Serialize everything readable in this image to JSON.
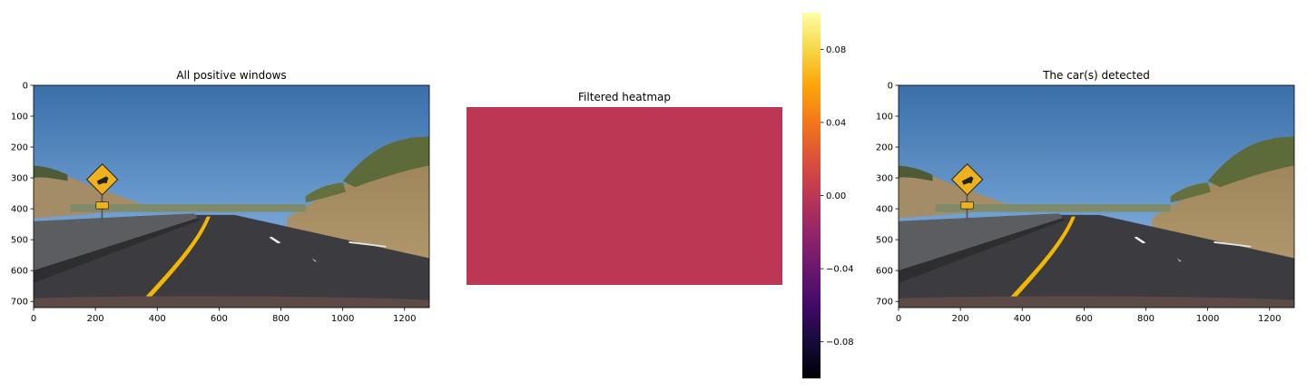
{
  "chart_data": [
    {
      "type": "image",
      "title": "All positive windows",
      "xticks": [
        0,
        200,
        400,
        600,
        800,
        1000,
        1200
      ],
      "yticks": [
        0,
        100,
        200,
        300,
        400,
        500,
        600,
        700
      ],
      "xlim": [
        0,
        1280
      ],
      "ylim": [
        720,
        0
      ],
      "scene": "road-with-deer-crossing-sign",
      "colors": {
        "sky_top": "#3d73ad",
        "sky_bottom": "#8fb7df",
        "road": "#3b3b40",
        "hill": "#a08a62",
        "lane_yellow": "#f2b705",
        "sign": "#f0b21c"
      }
    },
    {
      "type": "heatmap",
      "title": "Filtered heatmap",
      "values": [
        [
          0.0
        ]
      ],
      "cell_color": "#bb3754",
      "colorbar": {
        "cmap": "inferno",
        "range": [
          -0.1,
          0.1
        ],
        "ticks": [
          0.08,
          0.04,
          0.0,
          -0.04,
          -0.08
        ],
        "tick_labels": [
          "0.08",
          "0.04",
          "0.00",
          "−0.04",
          "−0.08"
        ]
      }
    },
    {
      "type": "image",
      "title": "The car(s) detected",
      "xticks": [
        0,
        200,
        400,
        600,
        800,
        1000,
        1200
      ],
      "yticks": [
        0,
        100,
        200,
        300,
        400,
        500,
        600,
        700
      ],
      "xlim": [
        0,
        1280
      ],
      "ylim": [
        720,
        0
      ],
      "scene": "road-with-deer-crossing-sign"
    }
  ]
}
